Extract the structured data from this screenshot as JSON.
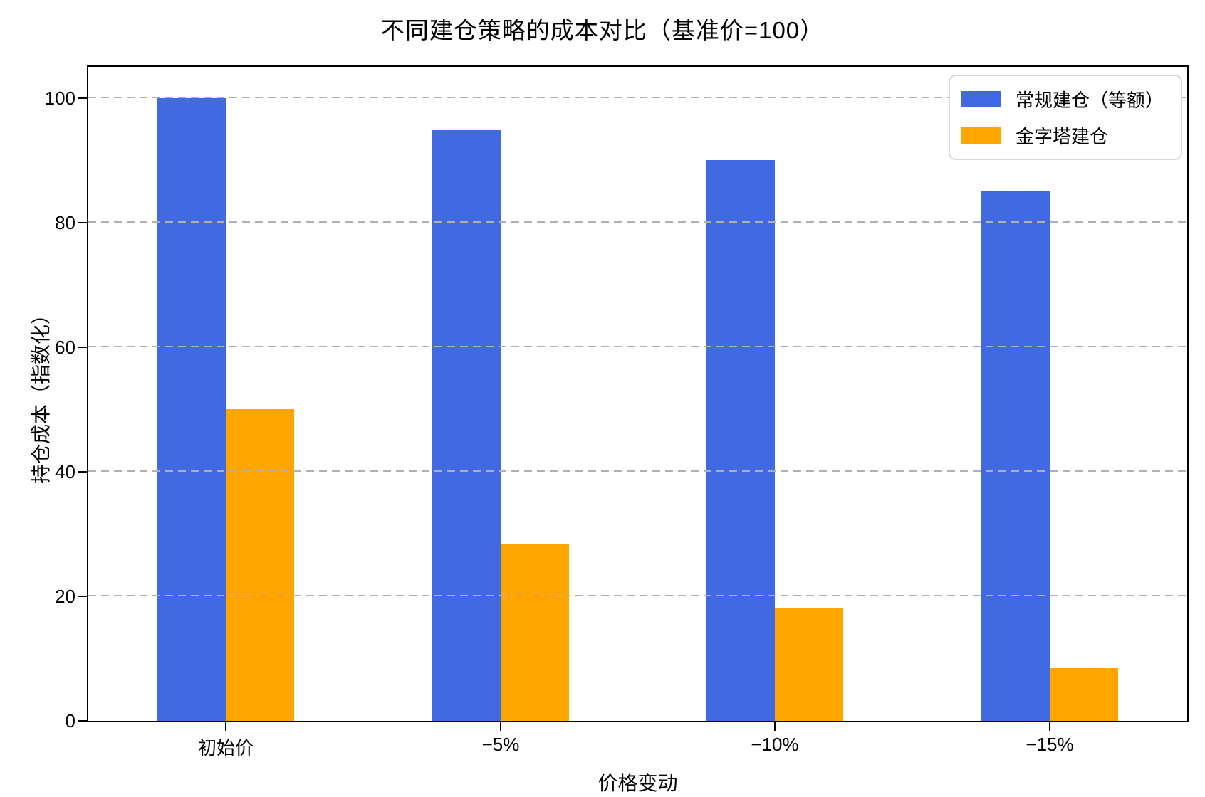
{
  "chart_data": {
    "type": "bar",
    "title": "不同建仓策略的成本对比（基准价=100）",
    "xlabel": "价格变动",
    "ylabel": "持仓成本（指数化）",
    "categories": [
      "初始价",
      "−5%",
      "−10%",
      "−15%"
    ],
    "series": [
      {
        "name": "常规建仓（等额）",
        "color": "#4169E1",
        "values": [
          100,
          95,
          90,
          85
        ]
      },
      {
        "name": "金字塔建仓",
        "color": "#FFA500",
        "values": [
          50,
          28.5,
          18,
          8.5
        ]
      }
    ],
    "ylim": [
      0,
      105
    ],
    "yticks": [
      0,
      20,
      40,
      60,
      80,
      100
    ],
    "grid": true,
    "grid_style": "dashed",
    "grid_color": "#b0b0b0",
    "legend_position": "top-right",
    "bar_group_width_fraction": 0.5
  }
}
